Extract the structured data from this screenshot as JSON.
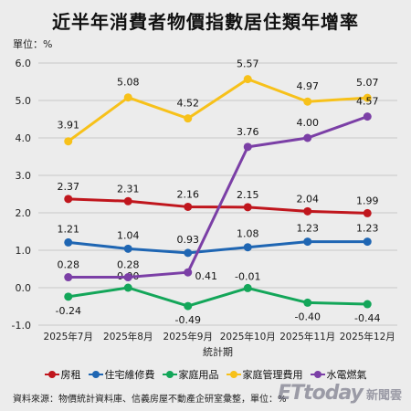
{
  "header": {
    "title": "近半年消費者物價指數居住類年增率",
    "unit": "單位：%"
  },
  "footer": {
    "source": "資料來源：物價統計資料庫、信義房屋不動產企研室彙整，單位：%",
    "brand_logo": "ETtoday",
    "brand_sub": "新聞雲"
  },
  "chart_data": {
    "type": "line",
    "title": "近半年消費者物價指數居住類年增率",
    "xlabel": "統計期",
    "ylabel": "單位：%",
    "categories": [
      "2025年7月",
      "2025年8月",
      "2025年9月",
      "2025年10月",
      "2025年11月",
      "2025年12月"
    ],
    "ylim": [
      -1.0,
      6.0
    ],
    "yticks": [
      "6.0",
      "5.0",
      "4.0",
      "3.0",
      "2.0",
      "1.0",
      "0.0",
      "-1.0"
    ],
    "grid": true,
    "legend_position": "bottom",
    "series": [
      {
        "name": "房租",
        "color": "#c0161d",
        "values": [
          2.37,
          2.31,
          2.16,
          2.15,
          2.04,
          1.99
        ],
        "labels": [
          "2.37",
          "2.31",
          "2.16",
          "2.15",
          "2.04",
          "1.99"
        ]
      },
      {
        "name": "住宅維修費",
        "color": "#1f66b3",
        "values": [
          1.21,
          1.04,
          0.93,
          1.08,
          1.23,
          1.23
        ],
        "labels": [
          "1.21",
          "1.04",
          "0.93",
          "1.08",
          "1.23",
          "1.23"
        ]
      },
      {
        "name": "家庭用品",
        "color": "#13a659",
        "values": [
          -0.24,
          0.0,
          -0.49,
          -0.01,
          -0.4,
          -0.44
        ],
        "labels": [
          "-0.24",
          "0.00",
          "-0.49",
          "-0.01",
          "-0.40",
          "-0.44"
        ]
      },
      {
        "name": "家庭管理費用",
        "color": "#f7c11a",
        "values": [
          3.91,
          5.08,
          4.52,
          5.57,
          4.97,
          5.07
        ],
        "labels": [
          "3.91",
          "5.08",
          "4.52",
          "5.57",
          "4.97",
          "5.07"
        ]
      },
      {
        "name": "水電燃氣",
        "color": "#7b3fa6",
        "values": [
          0.28,
          0.28,
          0.41,
          3.76,
          4.0,
          4.57
        ],
        "labels": [
          "0.28",
          "0.28",
          "0.41",
          "3.76",
          "4.00",
          "4.57"
        ]
      }
    ]
  }
}
